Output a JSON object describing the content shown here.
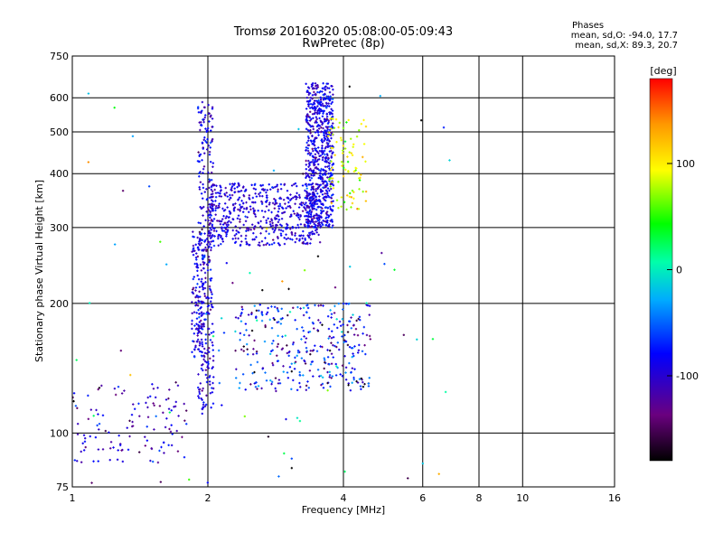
{
  "header": {
    "title_line1": "Tromsø 20160320 05:08:00-05:09:43",
    "title_line2": "RwPretec (8p)",
    "stats_heading": "Phases",
    "stats_o": "mean, sd,O: -94.0, 17.7",
    "stats_x": "mean, sd,X:  89.3, 20.7"
  },
  "chart_data": {
    "type": "scatter",
    "xlabel": "Frequency [MHz]",
    "ylabel": "Stationary phase Virtual Height [km]",
    "x_scale": "log",
    "y_scale": "log",
    "xlim": [
      1,
      16
    ],
    "ylim": [
      75,
      750
    ],
    "x_ticks": [
      1,
      2,
      4,
      6,
      8,
      10,
      16
    ],
    "y_ticks": [
      75,
      100,
      200,
      300,
      400,
      500,
      600,
      750
    ],
    "grid": true,
    "colorbar": {
      "label": "[deg]",
      "range": [
        -180,
        180
      ],
      "ticks": [
        -100,
        0,
        100
      ],
      "colormap": "rainbow (black-purple-blue-cyan-green-yellow-orange-red)"
    },
    "series": [
      {
        "trace": "o-mode vertical at 2 MHz",
        "x_range": [
          1.9,
          2.06
        ],
        "y_range": [
          110,
          600
        ],
        "n": 320,
        "phase_mean": -110,
        "phase_sd": 15
      },
      {
        "trace": "o-mode near 1.9 MHz low",
        "x_range": [
          1.84,
          1.96
        ],
        "y_range": [
          150,
          300
        ],
        "n": 130,
        "phase_mean": -110,
        "phase_sd": 18
      },
      {
        "trace": "o-mode F2 bowl",
        "x_range": [
          2.0,
          3.55
        ],
        "y_range": [
          272,
          380
        ],
        "n": 550,
        "phase_mean": -110,
        "phase_sd": 12
      },
      {
        "trace": "o-mode cusp near 3.7 MHz",
        "x_range": [
          3.3,
          3.8
        ],
        "y_range": [
          300,
          650
        ],
        "n": 700,
        "phase_mean": -108,
        "phase_sd": 15
      },
      {
        "trace": "x-mode trace",
        "x_range": [
          3.7,
          4.5
        ],
        "y_range": [
          330,
          540
        ],
        "n": 90,
        "phase_mean": 95,
        "phase_sd": 20
      },
      {
        "trace": "low-frequency E/Es echoes",
        "x_range": [
          1.0,
          1.8
        ],
        "y_range": [
          85,
          130
        ],
        "n": 120,
        "phase_mean": -115,
        "phase_sd": 20
      },
      {
        "trace": "mid-height cluster",
        "x_range": [
          2.3,
          4.6
        ],
        "y_range": [
          125,
          200
        ],
        "n": 340,
        "phase_mean": -95,
        "phase_sd": 40
      },
      {
        "trace": "scattered points",
        "x_range": [
          1.0,
          7.0
        ],
        "y_range": [
          75,
          650
        ],
        "n": 80,
        "phase_mean": -60,
        "phase_sd": 90
      }
    ]
  }
}
